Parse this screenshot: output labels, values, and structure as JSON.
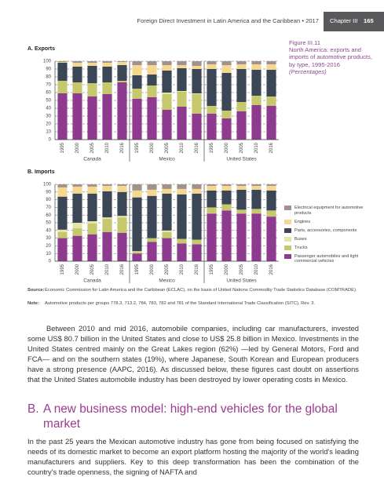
{
  "header": {
    "title": "Foreign Direct Investment in Latin America and the Caribbean • 2017",
    "chapter": "Chapter III",
    "page": "165"
  },
  "figure": {
    "number": "Figure III.11",
    "caption": "North America: exports and imports of automotive products, by type, 1995-2016",
    "unit": "(Percentages)"
  },
  "chart_data": [
    {
      "type": "bar",
      "stacked": true,
      "title": "A. Exports",
      "categories": [
        "1995",
        "2000",
        "2005",
        "2010",
        "2016",
        "1995",
        "2000",
        "2005",
        "2010",
        "2016",
        "1995",
        "2000",
        "2005",
        "2010",
        "2016"
      ],
      "groups": [
        "Canada",
        "Mexico",
        "United States"
      ],
      "ylim": [
        0,
        100
      ],
      "yticks": [
        0,
        10,
        20,
        30,
        40,
        50,
        60,
        70,
        80,
        90,
        100
      ],
      "grid": true,
      "series": [
        {
          "color": "#8e3a8e",
          "values": [
            59,
            59,
            55,
            58,
            73,
            52,
            54,
            38,
            42,
            33,
            33,
            27,
            36,
            44,
            43
          ]
        },
        {
          "color": "#c6c86e",
          "values": [
            16,
            14,
            17,
            15,
            2,
            13,
            15,
            20,
            19,
            25,
            10,
            10,
            12,
            12,
            12
          ]
        },
        {
          "color": "#e4e6a6",
          "values": [
            0,
            0,
            0,
            0,
            0,
            0,
            0,
            2,
            1,
            1,
            0,
            0,
            0,
            0,
            0
          ]
        },
        {
          "color": "#3b4656",
          "values": [
            23,
            20,
            22,
            20,
            20,
            17,
            14,
            28,
            29,
            31,
            47,
            48,
            42,
            33,
            34
          ]
        },
        {
          "color": "#f5d890",
          "values": [
            1,
            5,
            4,
            5,
            4,
            13,
            12,
            7,
            4,
            4,
            6,
            10,
            6,
            7,
            7
          ]
        },
        {
          "color": "#a3918d",
          "values": [
            1,
            2,
            2,
            2,
            1,
            5,
            5,
            5,
            5,
            6,
            4,
            5,
            4,
            4,
            4
          ]
        }
      ]
    },
    {
      "type": "bar",
      "stacked": true,
      "title": "B. Imports",
      "categories": [
        "1995",
        "2000",
        "2005",
        "2010",
        "2016",
        "1995",
        "2000",
        "2005",
        "2010",
        "2016",
        "1995",
        "2000",
        "2005",
        "2010",
        "2016"
      ],
      "groups": [
        "Canada",
        "Mexico",
        "United States"
      ],
      "ylim": [
        0,
        100
      ],
      "yticks": [
        0,
        10,
        20,
        30,
        40,
        50,
        60,
        70,
        80,
        90,
        100
      ],
      "grid": true,
      "legend": "right",
      "series": [
        {
          "name": "Passenger automobiles and light commercial vehicles",
          "color": "#8e3a8e",
          "values": [
            30,
            33,
            35,
            38,
            37,
            10,
            25,
            30,
            23,
            22,
            62,
            66,
            62,
            62,
            58
          ]
        },
        {
          "name": "Trucks",
          "color": "#c6c86e",
          "values": [
            8,
            10,
            14,
            17,
            20,
            2,
            5,
            8,
            6,
            6,
            8,
            8,
            5,
            6,
            8
          ]
        },
        {
          "name": "Buses",
          "color": "#e4e6a6",
          "values": [
            3,
            7,
            3,
            2,
            2,
            1,
            0,
            2,
            0,
            0,
            0,
            0,
            0,
            0,
            0
          ]
        },
        {
          "name": "Parts, accessories, components",
          "color": "#3b4656",
          "values": [
            43,
            38,
            36,
            34,
            31,
            70,
            55,
            48,
            58,
            60,
            22,
            18,
            26,
            25,
            26
          ]
        },
        {
          "name": "Engines",
          "color": "#f5d890",
          "values": [
            12,
            9,
            9,
            7,
            8,
            9,
            8,
            6,
            7,
            6,
            6,
            6,
            5,
            5,
            6
          ]
        },
        {
          "name": "Electrical equipment for automotive products",
          "color": "#a3918d",
          "values": [
            4,
            3,
            3,
            2,
            2,
            8,
            7,
            6,
            6,
            6,
            2,
            2,
            2,
            2,
            2
          ]
        }
      ]
    }
  ],
  "source": {
    "label": "Source:",
    "text": "Economic Commission for Latin America and the Caribbean (ECLAC), on the basis of United Nations Commodity Trade Statistics Database (COMTRADE)."
  },
  "note": {
    "label": "Note:",
    "text": "Automotive products per groups 778.3, 713.2, 784, 783, 782 and 781 of the Standard International Trade Classification (SITC), Rev. 3."
  },
  "body": {
    "paragraph_1": "Between 2010 and mid 2016, automobile companies, including car manufacturers, invested some US$ 80.7 billion in the United States and close to US$ 25.8 billion in Mexico. Investments in the United States centred mainly on the Great Lakes region (62%) —led by General Motors, Ford and FCA— and on the southern states (19%), where Japanese, South Korean and European producers have a strong presence (AAPC, 2016). As discussed below, these figures cast doubt on assertions that the United States automobile industry has been destroyed by lower operating costs in Mexico.",
    "section_number": "B.",
    "section_heading": "A new business model: high-end vehicles for the global market",
    "paragraph_2": "In the past 25 years the Mexican automotive industry has gone from being focused on satisfying the needs of its domestic market to become an export platform hosting the majority of the world's leading manufacturers and suppliers. Key to this deep transformation has been the combination of the country's trade openness, the signing of NAFTA and"
  }
}
